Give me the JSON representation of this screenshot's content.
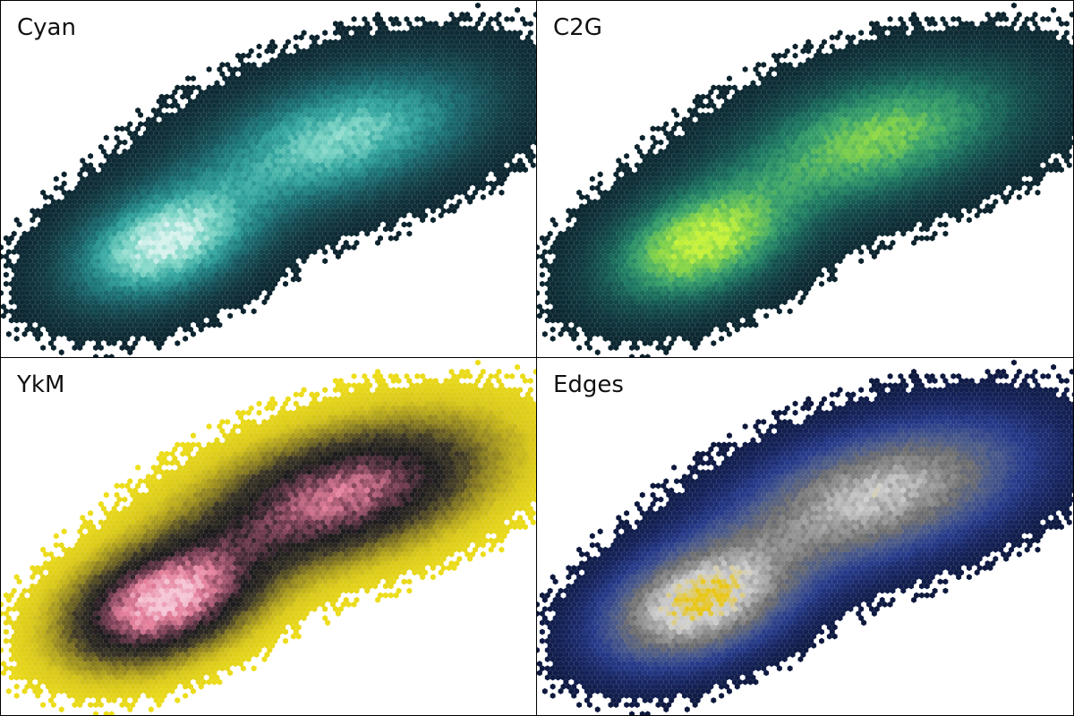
{
  "chart_data": [
    {
      "type": "heatmap",
      "plot_kind": "hexbin",
      "title": "Cyan",
      "colormap": [
        "#0b1f2a",
        "#11353e",
        "#16535a",
        "#1d7a7c",
        "#35a7a0",
        "#7fd6c6",
        "#d8f2ee"
      ],
      "clusters": [
        {
          "center": [
            -1.2,
            -1.1
          ],
          "std": [
            0.85,
            0.55
          ],
          "angle_deg": 35,
          "weight": 0.55
        },
        {
          "center": [
            1.0,
            0.7
          ],
          "std": [
            1.25,
            0.65
          ],
          "angle_deg": 25,
          "weight": 0.45
        }
      ],
      "xlim": [
        -3.2,
        3.4
      ],
      "ylim": [
        -3.0,
        3.0
      ],
      "axes_visible": false
    },
    {
      "type": "heatmap",
      "plot_kind": "hexbin",
      "title": "C2G",
      "colormap": [
        "#0b1f2a",
        "#10363d",
        "#14524f",
        "#1e7a62",
        "#3aa36a",
        "#7fd14a",
        "#c6f23a"
      ],
      "clusters": [
        {
          "center": [
            -1.2,
            -1.1
          ],
          "std": [
            0.85,
            0.55
          ],
          "angle_deg": 35,
          "weight": 0.55
        },
        {
          "center": [
            1.0,
            0.7
          ],
          "std": [
            1.25,
            0.65
          ],
          "angle_deg": 25,
          "weight": 0.45
        }
      ],
      "xlim": [
        -3.2,
        3.4
      ],
      "ylim": [
        -3.0,
        3.0
      ],
      "axes_visible": false
    },
    {
      "type": "heatmap",
      "plot_kind": "hexbin",
      "title": "YkM",
      "colormap": [
        "#f2e31a",
        "#d9c81a",
        "#8f8220",
        "#3a3526",
        "#1b1a1c",
        "#7a3f55",
        "#e57f9c",
        "#f5c6d6"
      ],
      "clusters": [
        {
          "center": [
            -1.2,
            -1.1
          ],
          "std": [
            0.85,
            0.55
          ],
          "angle_deg": 35,
          "weight": 0.55
        },
        {
          "center": [
            1.0,
            0.7
          ],
          "std": [
            1.25,
            0.65
          ],
          "angle_deg": 25,
          "weight": 0.45
        }
      ],
      "xlim": [
        -3.2,
        3.4
      ],
      "ylim": [
        -3.0,
        3.0
      ],
      "axes_visible": false
    },
    {
      "type": "heatmap",
      "plot_kind": "hexbin",
      "title": "Edges",
      "colormap": [
        "#0b1534",
        "#16245e",
        "#263a8a",
        "#4a5a8a",
        "#6e6e6e",
        "#9a9a9a",
        "#d0d0d0",
        "#e8c61a"
      ],
      "clusters": [
        {
          "center": [
            -1.2,
            -1.1
          ],
          "std": [
            0.85,
            0.55
          ],
          "angle_deg": 35,
          "weight": 0.55
        },
        {
          "center": [
            1.0,
            0.7
          ],
          "std": [
            1.25,
            0.65
          ],
          "angle_deg": 25,
          "weight": 0.45
        }
      ],
      "xlim": [
        -3.2,
        3.4
      ],
      "ylim": [
        -3.0,
        3.0
      ],
      "axes_visible": false
    }
  ]
}
